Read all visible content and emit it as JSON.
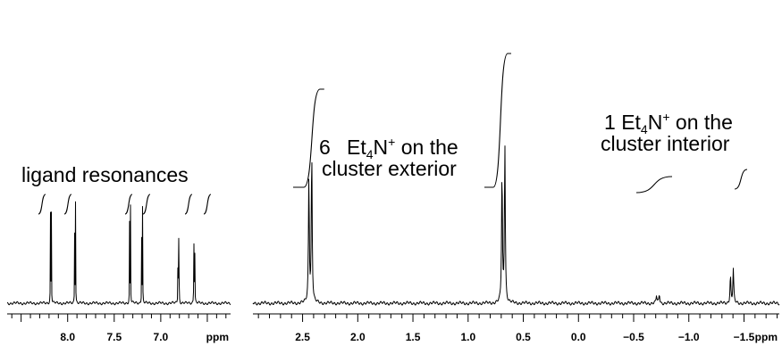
{
  "chart_data": [
    {
      "type": "line",
      "panel": "aromatic",
      "xlim": [
        8.65,
        6.25
      ],
      "xlabel": "ppm",
      "ticks": [
        8.0,
        7.5,
        7.0
      ],
      "tick_labels": [
        "8.0",
        "7.5",
        "7.0"
      ],
      "peaks": [
        {
          "x": 8.18,
          "h": 0.84
        },
        {
          "x": 7.92,
          "h": 0.79
        },
        {
          "x": 7.33,
          "h": 0.78
        },
        {
          "x": 7.2,
          "h": 0.74
        },
        {
          "x": 6.81,
          "h": 0.81
        },
        {
          "x": 6.64,
          "h": 0.73
        }
      ],
      "annotation": "ligand resonances"
    },
    {
      "type": "line",
      "panel": "aliphatic",
      "xlim": [
        2.95,
        -1.82
      ],
      "xlabel": "ppm",
      "ticks": [
        2.5,
        2.0,
        1.5,
        1.0,
        0.5,
        0.0,
        -0.5,
        -1.0,
        -1.5
      ],
      "tick_labels": [
        "2.5",
        "2.0",
        "1.5",
        "1.0",
        "0.5",
        "0.0",
        "−0.5",
        "−1.0",
        "−1.5"
      ],
      "peaks": [
        {
          "x": 2.43,
          "h": 1.0
        },
        {
          "x": 0.68,
          "h": 1.05
        },
        {
          "x": -0.72,
          "h": 0.06
        },
        {
          "x": -1.39,
          "h": 0.22
        }
      ],
      "annotations": [
        {
          "number": "6",
          "text_line1_a": "Et",
          "sub": "4",
          "text_line1_b": "N",
          "sup": "+",
          "text_line1_c": " on the",
          "text_line2": "cluster exterior"
        },
        {
          "number": "1",
          "text_line1_a": "Et",
          "sub": "4",
          "text_line1_b": "N",
          "sup": "+",
          "text_line1_c": " on the",
          "text_line2": "cluster interior"
        }
      ]
    }
  ]
}
